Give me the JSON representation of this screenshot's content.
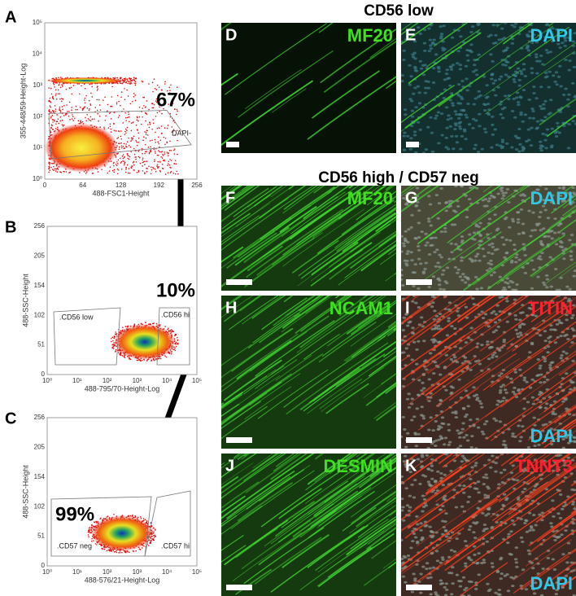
{
  "flow": [
    {
      "letter": "A",
      "ylabel": "355-448/59-Height-Log",
      "xlabel": "488-FSC1-Height",
      "yticks": [
        "10⁰",
        "10¹",
        "10²",
        "10³",
        "10⁴",
        "10⁵"
      ],
      "xticks": [
        "0",
        "64",
        "128",
        "192",
        "256"
      ],
      "gates": [
        "DAPI-"
      ],
      "percent": "67%"
    },
    {
      "letter": "B",
      "ylabel": "488-SSC-Height",
      "xlabel": "488-795/70-Height-Log",
      "yticks": [
        "0",
        "51",
        "102",
        "154",
        "205",
        "256"
      ],
      "xticks": [
        "10⁰",
        "10¹",
        "10²",
        "10³",
        "10⁴",
        "10⁵"
      ],
      "gates": [
        ".CD56 low",
        ".CD56 hi"
      ],
      "percent": "10%"
    },
    {
      "letter": "C",
      "ylabel": "488-SSC-Height",
      "xlabel": "488-576/21-Height-Log",
      "yticks": [
        "0",
        "51",
        "102",
        "154",
        "205",
        "256"
      ],
      "xticks": [
        "10⁰",
        "10¹",
        "10²",
        "10³",
        "10⁴",
        "10⁵"
      ],
      "gates": [
        ".CD57 neg",
        ".CD57 hi"
      ],
      "percent": "99%"
    }
  ],
  "headers": [
    "CD56 low",
    "CD56 high / CD57 neg"
  ],
  "images": [
    {
      "letter": "D",
      "stain": "MF20"
    },
    {
      "letter": "E",
      "stain": "DAPI"
    },
    {
      "letter": "F",
      "stain": "MF20"
    },
    {
      "letter": "G",
      "stain": "DAPI"
    },
    {
      "letter": "H",
      "stain": "NCAM1"
    },
    {
      "letter": "I",
      "stain": "TITIN",
      "counterstain": "DAPI"
    },
    {
      "letter": "J",
      "stain": "DESMIN"
    },
    {
      "letter": "K",
      "stain": "TNNT3",
      "counterstain": "DAPI"
    }
  ]
}
